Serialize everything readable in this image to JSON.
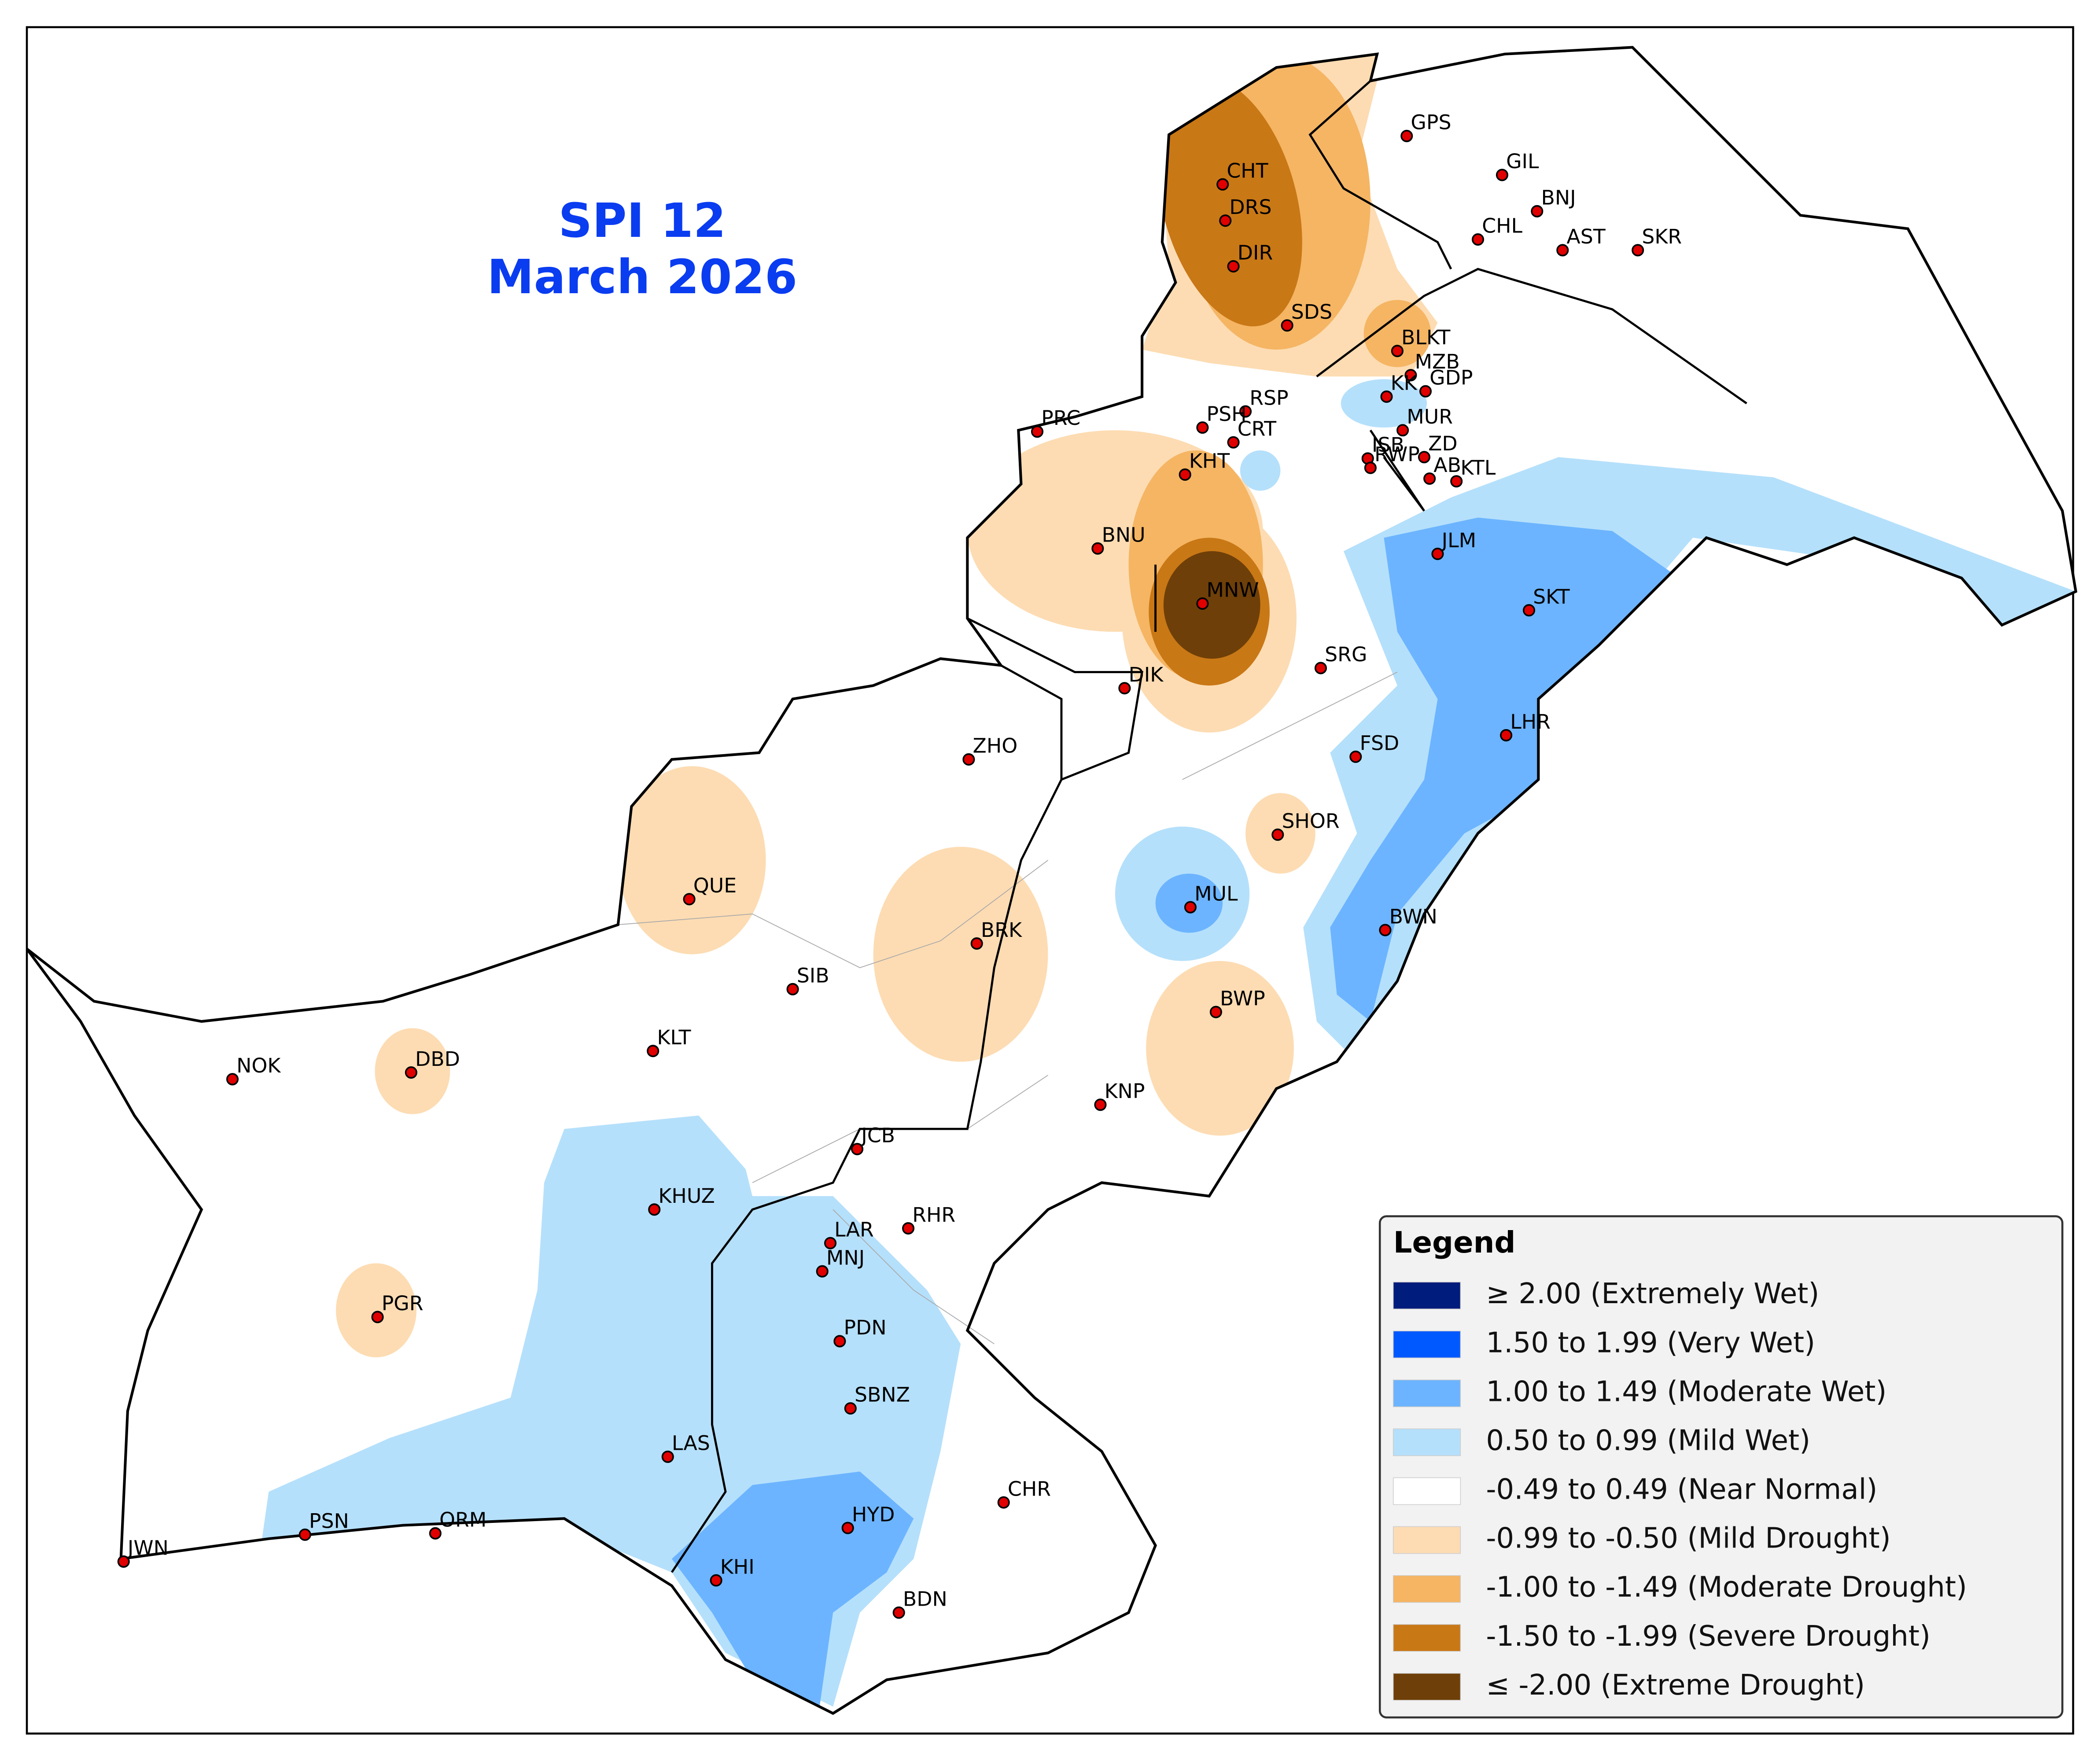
{
  "title": "SPI 12",
  "subtitle": "March 2026",
  "legend": {
    "title": "Legend",
    "items": [
      {
        "label": "≥ 2.00 (Extremely Wet)",
        "color": "#001c7c"
      },
      {
        "label": "1.50 to 1.99 (Very Wet)",
        "color": "#0059ff"
      },
      {
        "label": "1.00 to 1.49 (Moderate Wet)",
        "color": "#6cb4ff"
      },
      {
        "label": "0.50 to 0.99 (Mild Wet)",
        "color": "#b5e0fb"
      },
      {
        "label": "-0.49 to 0.49 (Near Normal)",
        "color": "#ffffff"
      },
      {
        "label": "-0.99 to -0.50 (Mild Drought)",
        "color": "#fddcb3"
      },
      {
        "label": "-1.00 to -1.49 (Moderate Drought)",
        "color": "#f5b563"
      },
      {
        "label": "-1.50 to -1.99 (Severe Drought)",
        "color": "#c97816"
      },
      {
        "label": "≤ -2.00 (Extreme Drought)",
        "color": "#6e3f08"
      }
    ]
  },
  "stations": [
    "GPS",
    "GIL",
    "BNJ",
    "CHL",
    "AST",
    "SKR",
    "CHT",
    "DRS",
    "DIR",
    "SDS",
    "BLKT",
    "MZB",
    "KK",
    "GDP",
    "MUR",
    "ISB",
    "ZD",
    "RWP",
    "AB",
    "KTL",
    "RSP",
    "PSH",
    "CRT",
    "PRC",
    "KHT",
    "BNU",
    "MNW",
    "DIK",
    "SRG",
    "JLM",
    "SKT",
    "LHR",
    "FSD",
    "ZHO",
    "SHOR",
    "QUE",
    "MUL",
    "BWN",
    "BRK",
    "SIB",
    "BWP",
    "KLT",
    "NOK",
    "DBD",
    "KNP",
    "JCB",
    "KHUZ",
    "LAR",
    "RHR",
    "MNJ",
    "PGR",
    "PDN",
    "SBNZ",
    "LAS",
    "CHR",
    "HYD",
    "PSN",
    "ORM",
    "JWN",
    "KHI",
    "BDN"
  ]
}
